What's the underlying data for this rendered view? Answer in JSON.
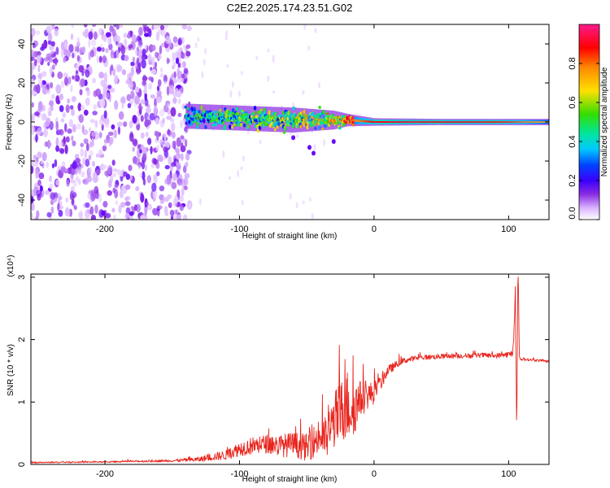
{
  "figure": {
    "title": "C2E2.2025.174.23.51.G02"
  },
  "colorbar": {
    "label": "Normalized spectral amplitude",
    "ticks": [
      "0.0",
      "0.2",
      "0.4",
      "0.6",
      "0.8"
    ],
    "tick_values": [
      0.0,
      0.2,
      0.4,
      0.6,
      0.8
    ],
    "range": [
      0.0,
      1.0
    ],
    "colors": [
      "#ffffff",
      "#d9b3ff",
      "#8a2be2",
      "#5a00ff",
      "#0000ff",
      "#00c8ff",
      "#00e6a0",
      "#33dd00",
      "#ffe000",
      "#ff8800",
      "#ff0000",
      "#ff1a8c"
    ]
  },
  "chart_data": [
    {
      "type": "heatmap",
      "xlabel": "Height of straight line (km)",
      "ylabel": "Frequency (Hz)",
      "xlim": [
        -255,
        130
      ],
      "ylim": [
        -50,
        50
      ],
      "xticks": [
        -200,
        -100,
        0,
        100
      ],
      "xtick_labels": [
        "-200",
        "-100",
        "0",
        "100"
      ],
      "yticks": [
        -40,
        -20,
        0,
        20,
        40
      ],
      "ytick_labels": [
        "-40",
        "-20",
        "0",
        "20",
        "40"
      ],
      "noise_region_x": [
        -255,
        -137
      ],
      "signal_band": {
        "x": [
          -140,
          -100,
          -60,
          -30,
          -20,
          0,
          50,
          100,
          130
        ],
        "center_hz": [
          3,
          2,
          1,
          1,
          1,
          0,
          0,
          0,
          0
        ],
        "halfwidth_hz": [
          4,
          4,
          4,
          3,
          2,
          1.2,
          1,
          1,
          1
        ],
        "amplitude": [
          0.4,
          0.45,
          0.5,
          0.6,
          0.7,
          0.9,
          0.9,
          0.85,
          0.7
        ]
      }
    },
    {
      "type": "line",
      "xlabel": "Height of straight line (km)",
      "ylabel": "SNR (10 * v/v)",
      "y_multiplier": "(x10⁴)",
      "xlim": [
        -255,
        130
      ],
      "ylim": [
        0,
        3.05
      ],
      "xticks": [
        -200,
        -100,
        0,
        100
      ],
      "xtick_labels": [
        "-200",
        "-100",
        "0",
        "100"
      ],
      "yticks": [
        0,
        1,
        2,
        3
      ],
      "ytick_labels": [
        "0",
        "1",
        "2",
        "3"
      ],
      "series": [
        {
          "color": "#e8241c",
          "x": [
            -255,
            -200,
            -150,
            -130,
            -120,
            -110,
            -100,
            -90,
            -80,
            -70,
            -60,
            -50,
            -40,
            -35,
            -30,
            -25,
            -20,
            -15,
            -10,
            -5,
            0,
            5,
            10,
            20,
            30,
            40,
            50,
            60,
            70,
            80,
            90,
            100,
            103,
            105,
            106,
            107,
            108,
            110,
            115,
            120,
            130
          ],
          "y": [
            0.03,
            0.04,
            0.06,
            0.08,
            0.12,
            0.15,
            0.25,
            0.3,
            0.33,
            0.3,
            0.32,
            0.27,
            0.45,
            0.42,
            0.7,
            0.8,
            0.95,
            0.9,
            1.05,
            1.1,
            1.15,
            1.3,
            1.5,
            1.65,
            1.7,
            1.72,
            1.73,
            1.74,
            1.74,
            1.75,
            1.74,
            1.76,
            1.78,
            2.6,
            0.5,
            3.05,
            1.7,
            1.68,
            1.68,
            1.67,
            1.65
          ],
          "noise_amp": [
            0.01,
            0.01,
            0.02,
            0.04,
            0.06,
            0.08,
            0.12,
            0.14,
            0.15,
            0.18,
            0.2,
            0.22,
            0.3,
            0.35,
            0.45,
            0.55,
            0.6,
            0.45,
            0.3,
            0.22,
            0.18,
            0.12,
            0.08,
            0.05,
            0.04,
            0.04,
            0.04,
            0.04,
            0.04,
            0.04,
            0.04,
            0.05,
            0.06,
            0.15,
            0.15,
            0.15,
            0.04,
            0.02,
            0.02,
            0.02,
            0.02
          ]
        }
      ]
    }
  ]
}
